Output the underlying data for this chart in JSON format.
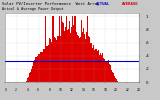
{
  "title": "Solar PV/Inverter Performance  West Array",
  "legend_actual": "ACTUAL",
  "legend_avg": "AVERAGE",
  "bg_color": "#c8c8c8",
  "plot_bg": "#ffffff",
  "bar_color": "#dd0000",
  "avg_line_color": "#0000cc",
  "grid_color": "#aaaaaa",
  "text_color": "#000000",
  "legend_actual_color": "#0000cc",
  "legend_avg_color": "#cc0000",
  "n_bars": 200,
  "avg_value": 0.32,
  "ylim_max": 1.05,
  "yticks": [
    0.0,
    0.2,
    0.4,
    0.6,
    0.8,
    1.0
  ],
  "ytick_labels": [
    "0",
    ".2",
    ".4",
    ".6",
    ".8",
    "1"
  ],
  "xtick_labels": [
    "0",
    "2",
    "4",
    "6",
    "8",
    "10",
    "12",
    "14",
    "16",
    "18",
    "20",
    "22",
    "24"
  ]
}
